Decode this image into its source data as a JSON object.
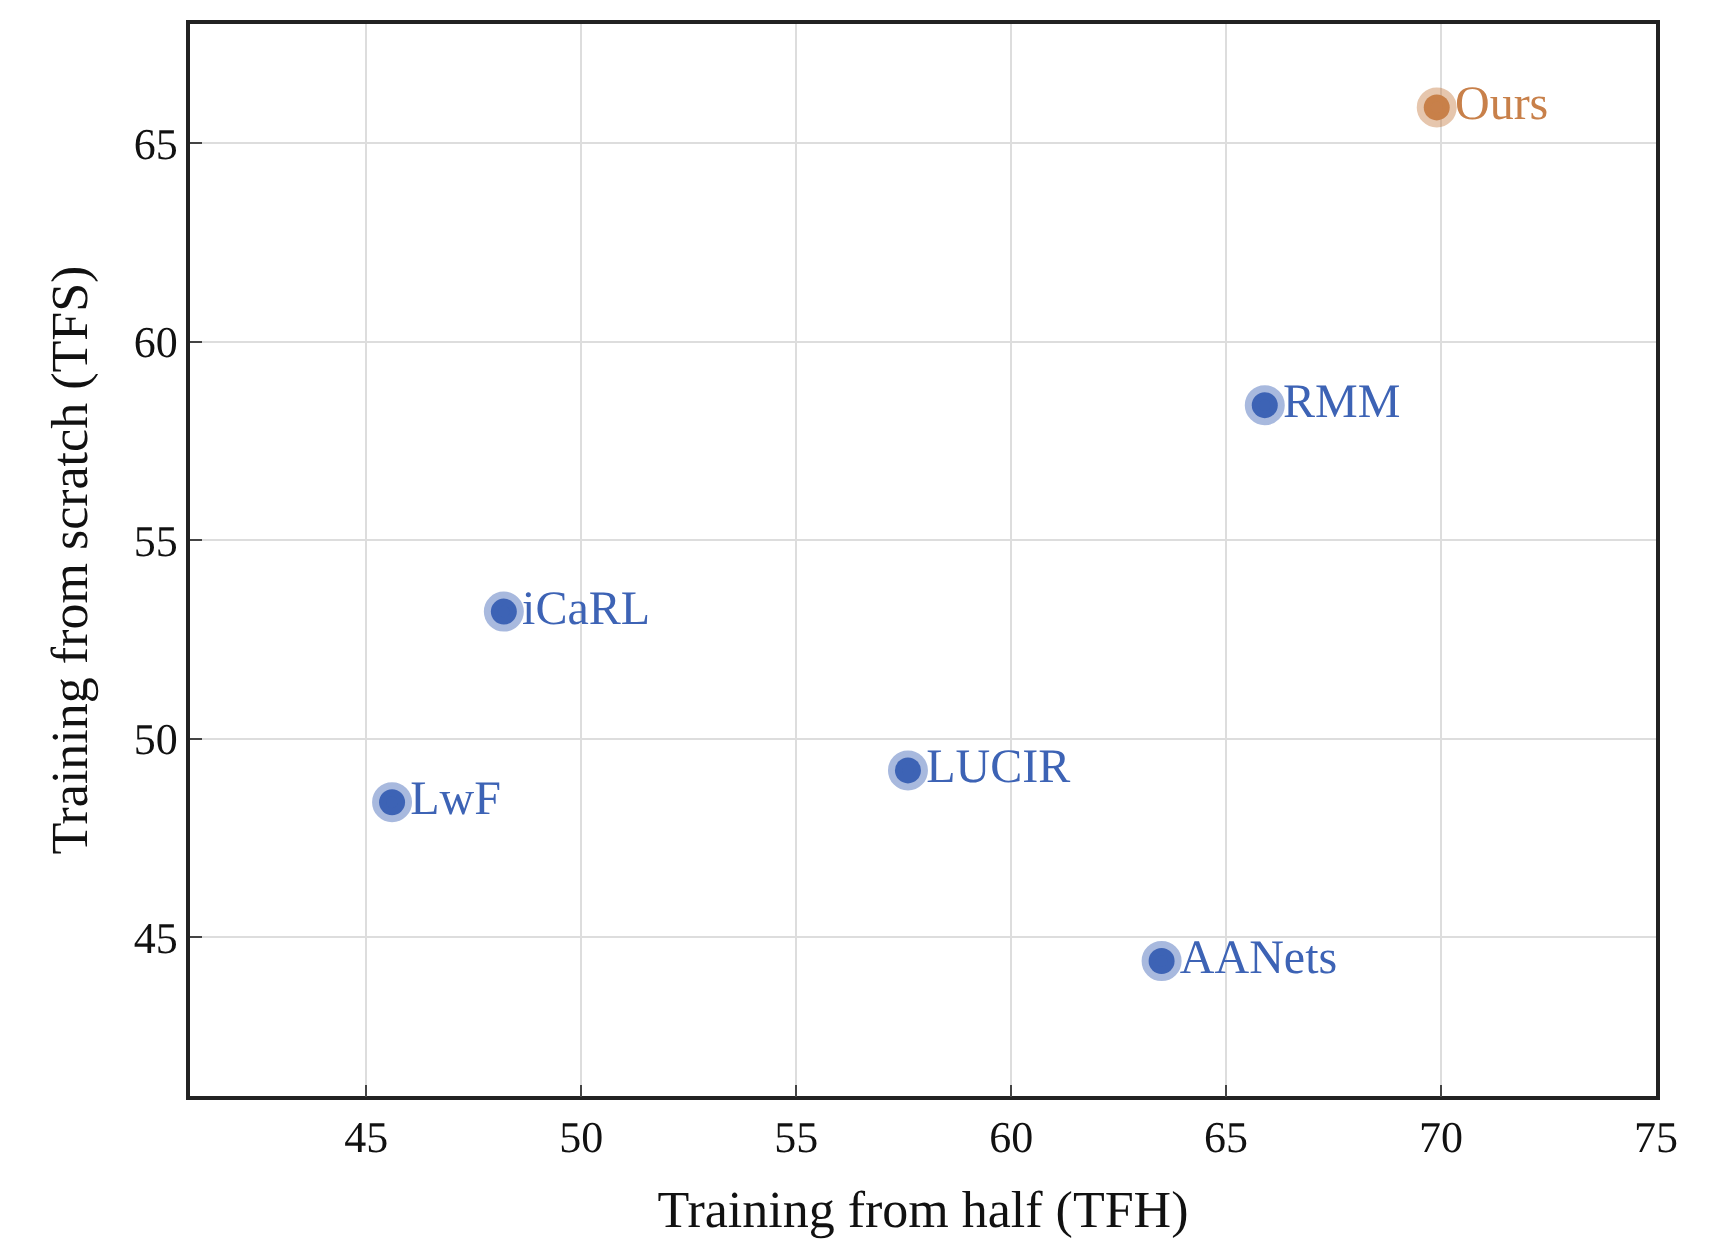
{
  "chart_data": {
    "type": "scatter",
    "xlabel": "Training from half (TFH)",
    "ylabel": "Training from scratch (TFS)",
    "xlim": [
      40.9,
      75
    ],
    "ylim": [
      41,
      68
    ],
    "xticks": [
      45,
      50,
      55,
      60,
      65,
      70,
      75
    ],
    "yticks": [
      45,
      50,
      55,
      60,
      65
    ],
    "grid": true,
    "legend": false,
    "marker": "circle",
    "series": [
      {
        "name": "iCaRL",
        "color": "#3d63b5",
        "x": [
          48.2
        ],
        "values": [
          53.2
        ]
      },
      {
        "name": "LwF",
        "color": "#3d63b5",
        "x": [
          45.6
        ],
        "values": [
          48.4
        ]
      },
      {
        "name": "LUCIR",
        "color": "#3d63b5",
        "x": [
          57.6
        ],
        "values": [
          49.2
        ]
      },
      {
        "name": "AANets",
        "color": "#3d63b5",
        "x": [
          63.5
        ],
        "values": [
          44.4
        ]
      },
      {
        "name": "RMM",
        "color": "#3d63b5",
        "x": [
          65.9
        ],
        "values": [
          58.4
        ]
      },
      {
        "name": "Ours",
        "color": "#c8804a",
        "x": [
          69.9
        ],
        "values": [
          65.9
        ]
      }
    ]
  }
}
